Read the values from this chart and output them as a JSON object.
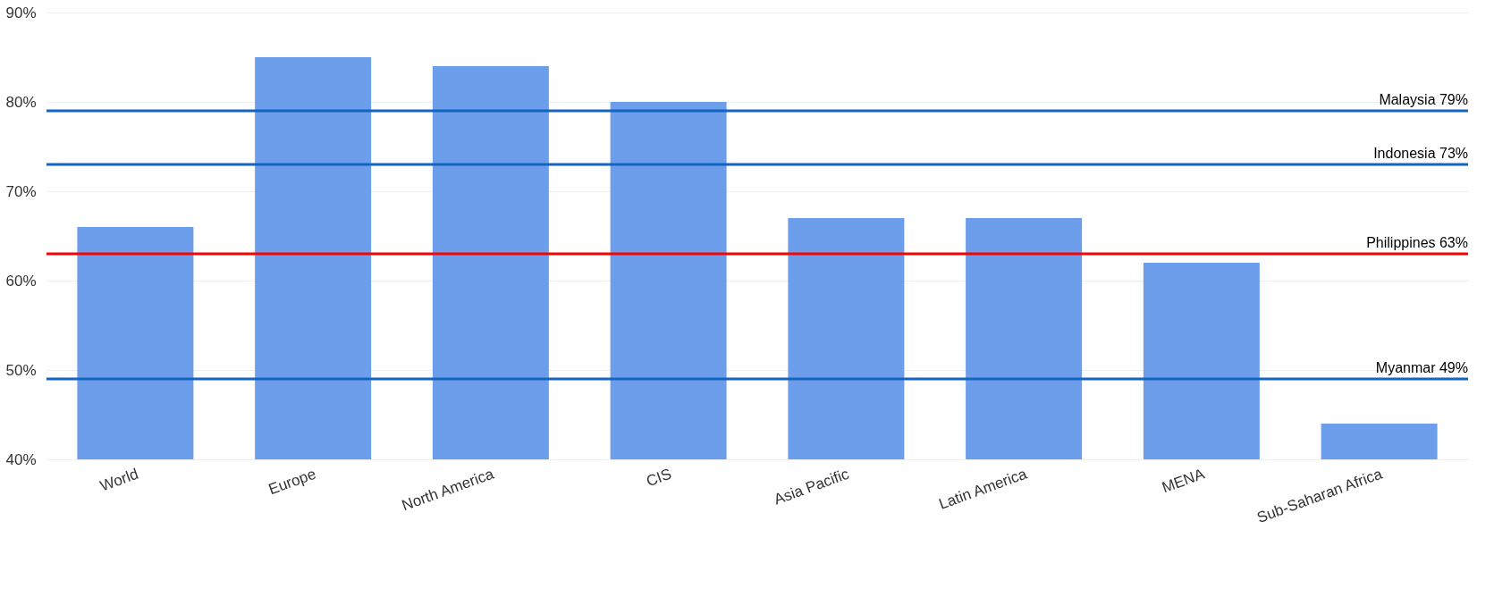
{
  "chart_data": {
    "type": "bar",
    "categories": [
      "World",
      "Europe",
      "North America",
      "CIS",
      "Asia Pacific",
      "Latin America",
      "MENA",
      "Sub-Saharan Africa"
    ],
    "values": [
      66,
      85,
      84,
      80,
      67,
      67,
      62,
      44
    ],
    "color": "#6d9eeb",
    "ylim": [
      40,
      90
    ],
    "yticks": [
      {
        "value": 40,
        "label": "40%"
      },
      {
        "value": 50,
        "label": "50%"
      },
      {
        "value": 60,
        "label": "60%"
      },
      {
        "value": 70,
        "label": "70%"
      },
      {
        "value": 80,
        "label": "80%"
      },
      {
        "value": 90,
        "label": "90%"
      }
    ],
    "grid": "y",
    "ref_lines": [
      {
        "axis": "y",
        "value": 79,
        "label": "Malaysia 79%",
        "color": "#1565c0"
      },
      {
        "axis": "y",
        "value": 73,
        "label": "Indonesia 73%",
        "color": "#1565c0"
      },
      {
        "axis": "y",
        "value": 63,
        "label": "Philippines 63%",
        "color": "#ff0000"
      },
      {
        "axis": "y",
        "value": 49,
        "label": "Myanmar 49%",
        "color": "#1565c0"
      }
    ]
  }
}
